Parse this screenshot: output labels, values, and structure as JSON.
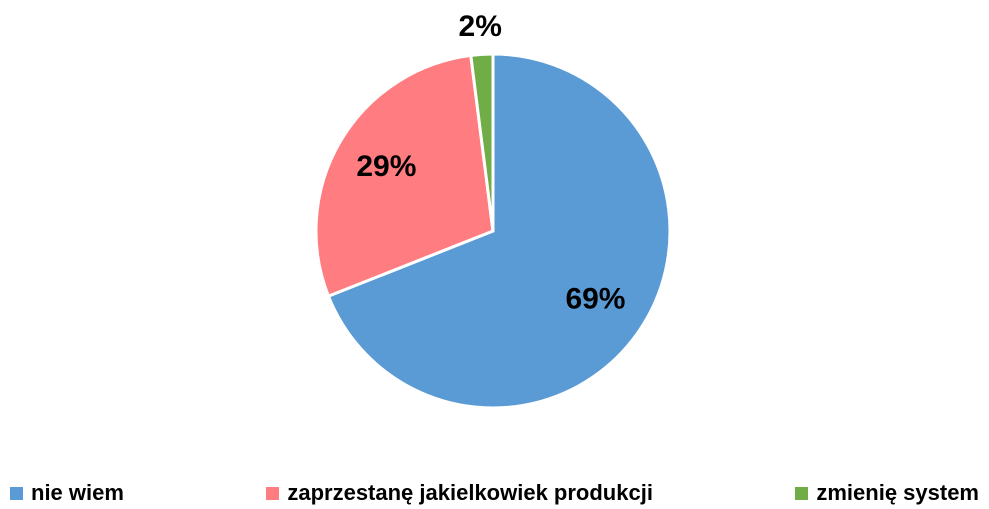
{
  "chart_data": {
    "type": "pie",
    "categories": [
      "nie wiem",
      "zaprzestanę jakielkowiek produkcji",
      "zmienię system"
    ],
    "values": [
      69,
      29,
      2
    ],
    "value_labels": [
      "69%",
      "29%",
      "2%"
    ],
    "colors": [
      "#5b9bd5",
      "#ff7c80",
      "#70ad47"
    ],
    "legend": "bottom"
  }
}
